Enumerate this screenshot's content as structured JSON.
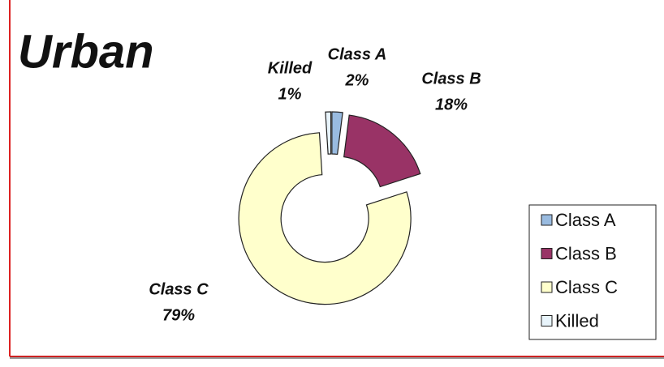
{
  "chart_data": {
    "type": "donut",
    "title": "Urban",
    "categories": [
      "Class A",
      "Class B",
      "Class C",
      "Killed"
    ],
    "values": [
      2,
      18,
      79,
      1
    ],
    "value_labels": [
      "2%",
      "18%",
      "79%",
      "1%"
    ],
    "colors": [
      "#99bbe0",
      "#993366",
      "#ffffcc",
      "#e8f4fb"
    ],
    "legend": "right"
  }
}
